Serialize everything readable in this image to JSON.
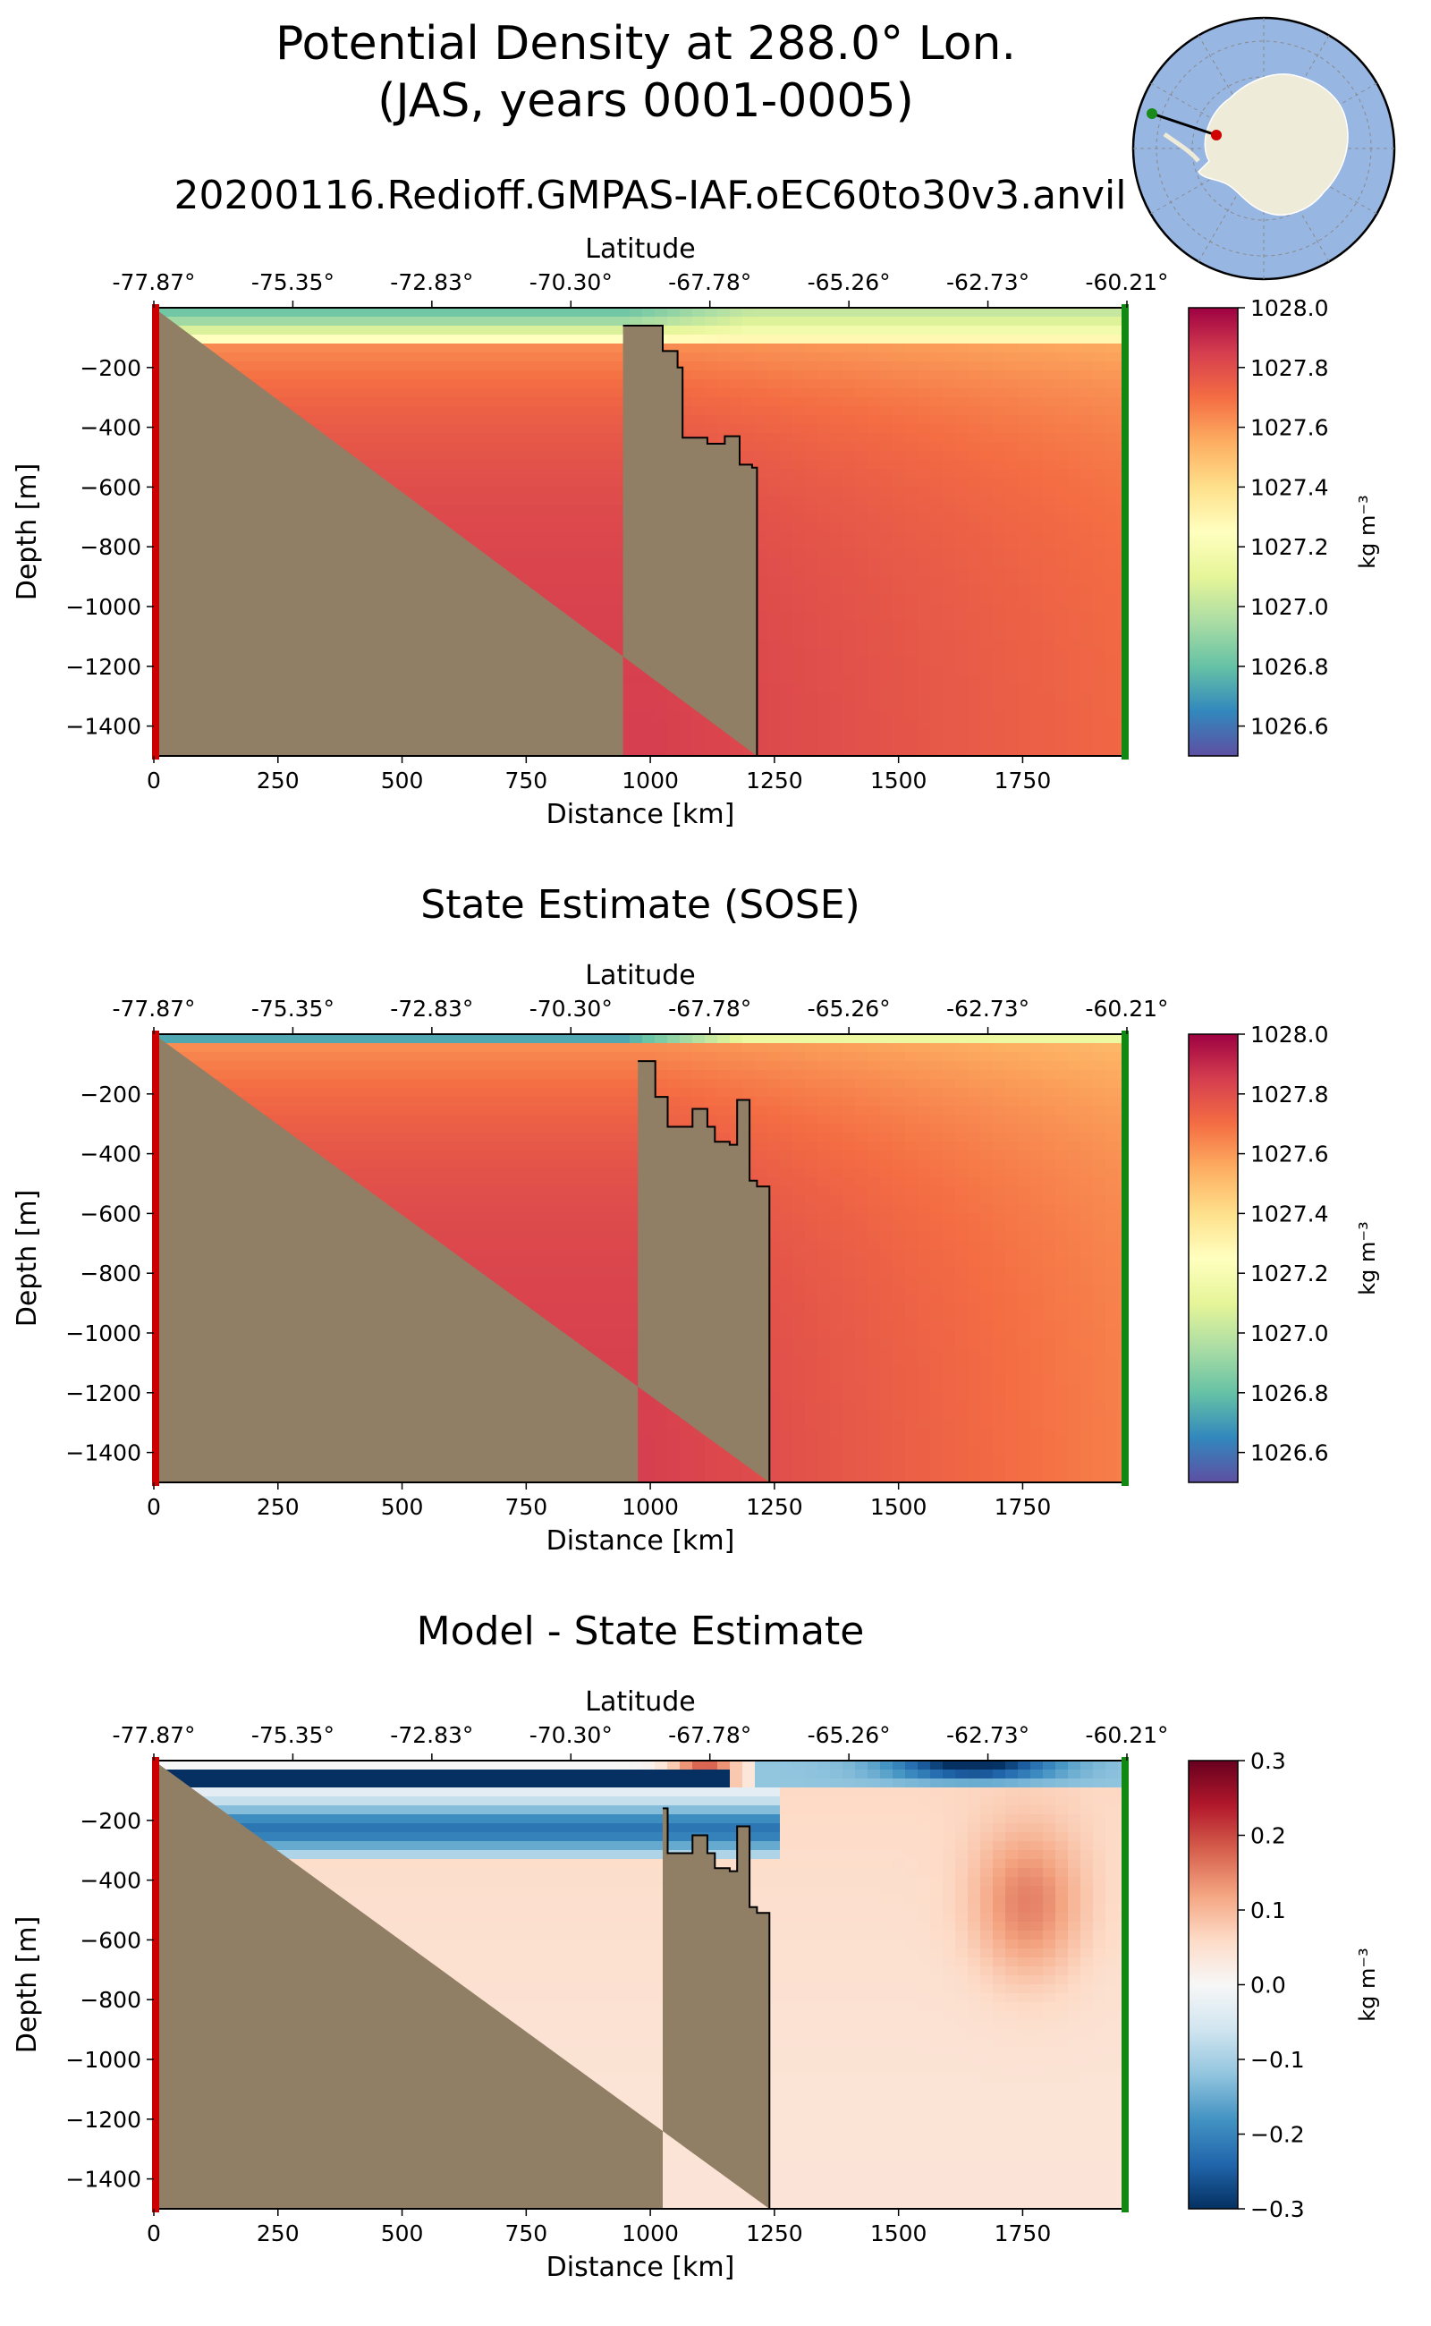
{
  "figure": {
    "title_line1": "Potential Density at 288.0° Lon.",
    "title_line2": "(JAS, years 0001-0005)",
    "subtitle": "20200116.Redioff.GMPAS-IAF.oEC60to30v3.anvil",
    "inset_map": {
      "type": "south-polar map",
      "transect_start_color": "#d00000",
      "transect_end_color": "#1a8a1a",
      "ocean_color": "#97b6e2",
      "land_color": "#efebd9"
    }
  },
  "chart_data": [
    {
      "type": "heatmap",
      "title": "",
      "xlabel": "Distance [km]",
      "ylabel": "Depth [m]",
      "top_axis_label": "Latitude",
      "xlim": [
        0,
        1960
      ],
      "ylim": [
        -1500,
        0
      ],
      "x_ticks": [
        0,
        250,
        500,
        750,
        1000,
        1250,
        1500,
        1750
      ],
      "y_ticks": [
        -200,
        -400,
        -600,
        -800,
        -1000,
        -1200,
        -1400
      ],
      "top_ticks": [
        {
          "x": 0,
          "label": "-77.87°"
        },
        {
          "x": 280,
          "label": "-75.35°"
        },
        {
          "x": 560,
          "label": "-72.83°"
        },
        {
          "x": 840,
          "label": "-70.30°"
        },
        {
          "x": 1120,
          "label": "-67.78°"
        },
        {
          "x": 1400,
          "label": "-65.26°"
        },
        {
          "x": 1680,
          "label": "-62.73°"
        },
        {
          "x": 1960,
          "label": "-60.21°"
        }
      ],
      "colorbar": {
        "label": "kg m⁻³",
        "colormap": "Spectral_r",
        "range": [
          1026.5,
          1028.0
        ],
        "ticks": [
          "1028.0",
          "1027.8",
          "1027.6",
          "1027.4",
          "1027.2",
          "1027.0",
          "1026.8",
          "1026.6"
        ],
        "tick_values": [
          1028.0,
          1027.8,
          1027.6,
          1027.4,
          1027.2,
          1027.0,
          1026.8,
          1026.6
        ]
      },
      "land_color": "#917f65",
      "bathymetry_profile": [
        [
          0,
          -1500
        ],
        [
          945,
          -1500
        ],
        [
          945,
          -60
        ],
        [
          1025,
          -60
        ],
        [
          1025,
          -145
        ],
        [
          1055,
          -145
        ],
        [
          1055,
          -200
        ],
        [
          1065,
          -200
        ],
        [
          1065,
          -435
        ],
        [
          1115,
          -435
        ],
        [
          1115,
          -455
        ],
        [
          1150,
          -455
        ],
        [
          1150,
          -430
        ],
        [
          1180,
          -430
        ],
        [
          1180,
          -525
        ],
        [
          1205,
          -525
        ],
        [
          1205,
          -535
        ],
        [
          1215,
          -535
        ],
        [
          1215,
          -1500
        ]
      ],
      "density_field": {
        "surface_offshore": 1027.0,
        "surface_shelf": 1026.8,
        "mixed_layer_base_m": 120,
        "deep_offshore": 1027.72,
        "deep_coastal": 1027.85
      },
      "transect_start_marker": "#cc0000",
      "transect_end_marker": "#118811"
    },
    {
      "type": "heatmap",
      "title": "State Estimate (SOSE)",
      "xlabel": "Distance [km]",
      "ylabel": "Depth [m]",
      "top_axis_label": "Latitude",
      "xlim": [
        0,
        1960
      ],
      "ylim": [
        -1500,
        0
      ],
      "x_ticks": [
        0,
        250,
        500,
        750,
        1000,
        1250,
        1500,
        1750
      ],
      "y_ticks": [
        -200,
        -400,
        -600,
        -800,
        -1000,
        -1200,
        -1400
      ],
      "top_ticks": [
        {
          "x": 0,
          "label": "-77.87°"
        },
        {
          "x": 280,
          "label": "-75.35°"
        },
        {
          "x": 560,
          "label": "-72.83°"
        },
        {
          "x": 840,
          "label": "-70.30°"
        },
        {
          "x": 1120,
          "label": "-67.78°"
        },
        {
          "x": 1400,
          "label": "-65.26°"
        },
        {
          "x": 1680,
          "label": "-62.73°"
        },
        {
          "x": 1960,
          "label": "-60.21°"
        }
      ],
      "colorbar": {
        "label": "kg m⁻³",
        "colormap": "Spectral_r",
        "range": [
          1026.5,
          1028.0
        ],
        "ticks": [
          "1028.0",
          "1027.8",
          "1027.6",
          "1027.4",
          "1027.2",
          "1027.0",
          "1026.8",
          "1026.6"
        ],
        "tick_values": [
          1028.0,
          1027.8,
          1027.6,
          1027.4,
          1027.2,
          1027.0,
          1026.8,
          1026.6
        ]
      },
      "land_color": "#917f65",
      "bathymetry_profile": [
        [
          0,
          -1500
        ],
        [
          975,
          -1500
        ],
        [
          975,
          -90
        ],
        [
          1010,
          -90
        ],
        [
          1010,
          -210
        ],
        [
          1035,
          -210
        ],
        [
          1035,
          -310
        ],
        [
          1085,
          -310
        ],
        [
          1085,
          -250
        ],
        [
          1115,
          -250
        ],
        [
          1115,
          -310
        ],
        [
          1130,
          -310
        ],
        [
          1130,
          -360
        ],
        [
          1160,
          -360
        ],
        [
          1160,
          -370
        ],
        [
          1175,
          -370
        ],
        [
          1175,
          -220
        ],
        [
          1200,
          -220
        ],
        [
          1200,
          -490
        ],
        [
          1215,
          -490
        ],
        [
          1215,
          -510
        ],
        [
          1240,
          -510
        ],
        [
          1240,
          -1500
        ]
      ],
      "density_field": {
        "surface_offshore": 1027.08,
        "surface_shelf": 1026.55,
        "mixed_layer_base_m": 40,
        "deep_offshore": 1027.66,
        "deep_coastal": 1027.85
      },
      "transect_start_marker": "#cc0000",
      "transect_end_marker": "#118811"
    },
    {
      "type": "heatmap",
      "title": "Model - State Estimate",
      "xlabel": "Distance [km]",
      "ylabel": "Depth [m]",
      "top_axis_label": "Latitude",
      "xlim": [
        0,
        1960
      ],
      "ylim": [
        -1500,
        0
      ],
      "x_ticks": [
        0,
        250,
        500,
        750,
        1000,
        1250,
        1500,
        1750
      ],
      "y_ticks": [
        -200,
        -400,
        -600,
        -800,
        -1000,
        -1200,
        -1400
      ],
      "top_ticks": [
        {
          "x": 0,
          "label": "-77.87°"
        },
        {
          "x": 280,
          "label": "-75.35°"
        },
        {
          "x": 560,
          "label": "-72.83°"
        },
        {
          "x": 840,
          "label": "-70.30°"
        },
        {
          "x": 1120,
          "label": "-67.78°"
        },
        {
          "x": 1400,
          "label": "-65.26°"
        },
        {
          "x": 1680,
          "label": "-62.73°"
        },
        {
          "x": 1960,
          "label": "-60.21°"
        }
      ],
      "colorbar": {
        "label": "kg m⁻³",
        "colormap": "RdBu_r",
        "range": [
          -0.3,
          0.3
        ],
        "ticks": [
          "0.3",
          "0.2",
          "0.1",
          "0.0",
          "−0.1",
          "−0.2",
          "−0.3"
        ],
        "tick_values": [
          0.3,
          0.2,
          0.1,
          0.0,
          -0.1,
          -0.2,
          -0.3
        ]
      },
      "land_color": "#917f65",
      "bathymetry_profile": [
        [
          0,
          -1500
        ],
        [
          1025,
          -1500
        ],
        [
          1025,
          -160
        ],
        [
          1035,
          -160
        ],
        [
          1035,
          -310
        ],
        [
          1085,
          -310
        ],
        [
          1085,
          -250
        ],
        [
          1115,
          -250
        ],
        [
          1115,
          -310
        ],
        [
          1130,
          -310
        ],
        [
          1130,
          -360
        ],
        [
          1160,
          -360
        ],
        [
          1160,
          -370
        ],
        [
          1175,
          -370
        ],
        [
          1175,
          -220
        ],
        [
          1200,
          -220
        ],
        [
          1200,
          -490
        ],
        [
          1215,
          -490
        ],
        [
          1215,
          -510
        ],
        [
          1240,
          -510
        ],
        [
          1240,
          -1500
        ]
      ],
      "difference_field": {
        "surface_layer_offshore": -0.18,
        "shelf_near_surface": -0.3,
        "surface_band_near_coast": 0.2,
        "deep_maximum": 0.13,
        "deep_maximum_location_km": 1760,
        "deep_maximum_depth_m": -500
      },
      "transect_start_marker": "#cc0000",
      "transect_end_marker": "#118811"
    }
  ]
}
